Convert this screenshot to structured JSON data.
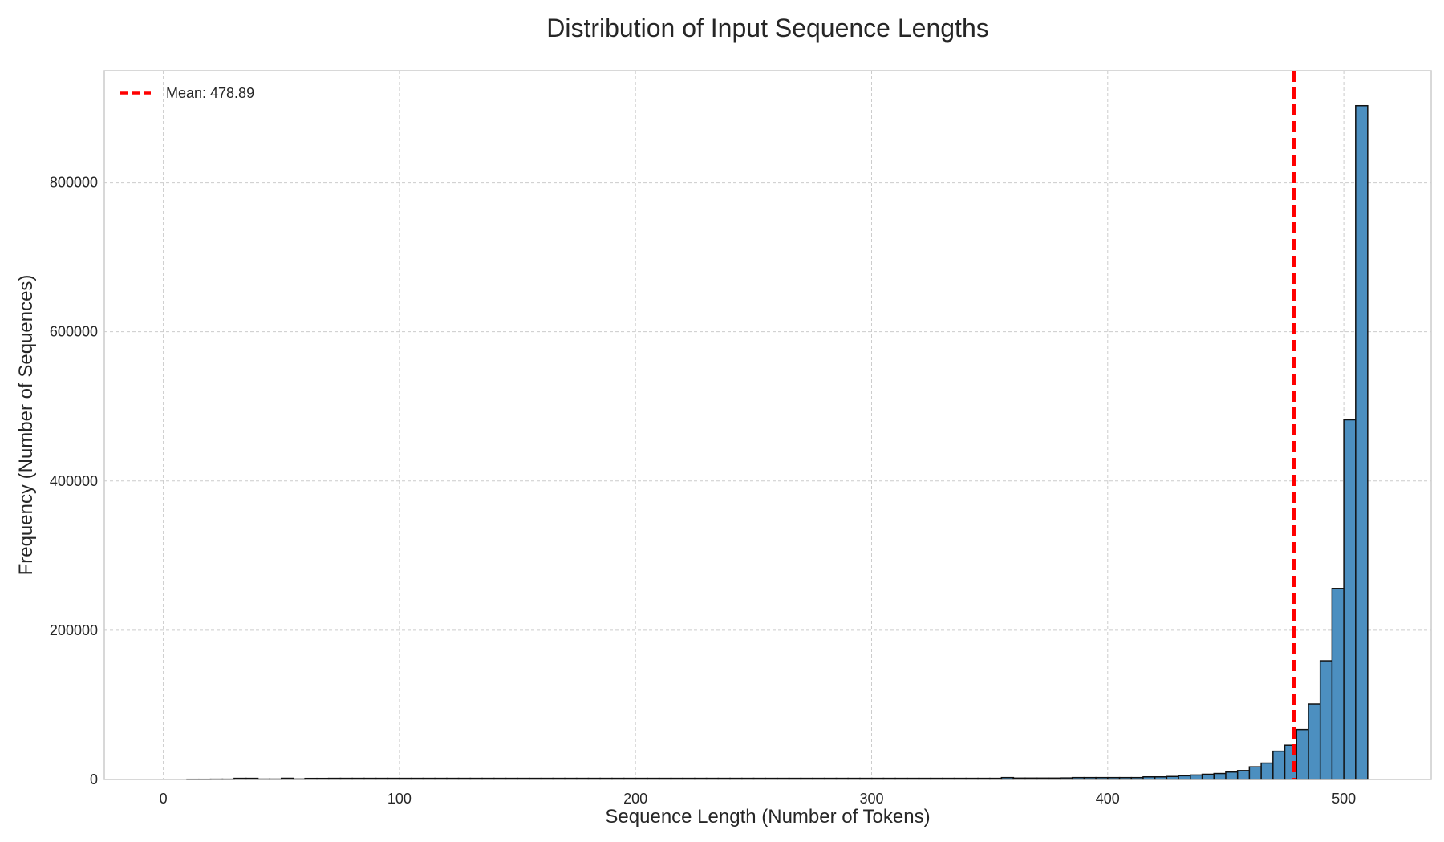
{
  "chart_data": {
    "type": "bar",
    "title": "Distribution of Input Sequence Lengths",
    "xlabel": "Sequence Length (Number of Tokens)",
    "ylabel": "Frequency (Number of Sequences)",
    "xlim": [
      -25,
      537
    ],
    "ylim": [
      0,
      950000
    ],
    "xticks": [
      0,
      100,
      200,
      300,
      400,
      500
    ],
    "yticks": [
      0,
      200000,
      400000,
      600000,
      800000
    ],
    "grid": true,
    "legend_position": "top-left",
    "colors": {
      "bar": "#4c8fc0",
      "bar_edge": "#111111",
      "mean_line": "#ff0000"
    },
    "mean": {
      "value": 478.89,
      "label": "Mean: 478.89"
    },
    "bin_width": 5.1,
    "bins": [
      {
        "x": 10,
        "y": 300
      },
      {
        "x": 15,
        "y": 300
      },
      {
        "x": 20,
        "y": 400
      },
      {
        "x": 25,
        "y": 400
      },
      {
        "x": 30,
        "y": 1500
      },
      {
        "x": 35,
        "y": 1500
      },
      {
        "x": 40,
        "y": 500
      },
      {
        "x": 45,
        "y": 500
      },
      {
        "x": 50,
        "y": 1600
      },
      {
        "x": 55,
        "y": 600
      },
      {
        "x": 60,
        "y": 1400
      },
      {
        "x": 65,
        "y": 1400
      },
      {
        "x": 70,
        "y": 1500
      },
      {
        "x": 75,
        "y": 1500
      },
      {
        "x": 80,
        "y": 1500
      },
      {
        "x": 85,
        "y": 1500
      },
      {
        "x": 90,
        "y": 1500
      },
      {
        "x": 95,
        "y": 1500
      },
      {
        "x": 100,
        "y": 1500
      },
      {
        "x": 105,
        "y": 1500
      },
      {
        "x": 110,
        "y": 1500
      },
      {
        "x": 115,
        "y": 1500
      },
      {
        "x": 120,
        "y": 1500
      },
      {
        "x": 125,
        "y": 1500
      },
      {
        "x": 130,
        "y": 1500
      },
      {
        "x": 135,
        "y": 1500
      },
      {
        "x": 140,
        "y": 1500
      },
      {
        "x": 145,
        "y": 1500
      },
      {
        "x": 150,
        "y": 1500
      },
      {
        "x": 155,
        "y": 1500
      },
      {
        "x": 160,
        "y": 1500
      },
      {
        "x": 165,
        "y": 1500
      },
      {
        "x": 170,
        "y": 1500
      },
      {
        "x": 175,
        "y": 1500
      },
      {
        "x": 180,
        "y": 1500
      },
      {
        "x": 185,
        "y": 1500
      },
      {
        "x": 190,
        "y": 1500
      },
      {
        "x": 195,
        "y": 1500
      },
      {
        "x": 200,
        "y": 1500
      },
      {
        "x": 205,
        "y": 1500
      },
      {
        "x": 210,
        "y": 1500
      },
      {
        "x": 215,
        "y": 1500
      },
      {
        "x": 220,
        "y": 1500
      },
      {
        "x": 225,
        "y": 1500
      },
      {
        "x": 230,
        "y": 1500
      },
      {
        "x": 235,
        "y": 1500
      },
      {
        "x": 240,
        "y": 1500
      },
      {
        "x": 245,
        "y": 1500
      },
      {
        "x": 250,
        "y": 1500
      },
      {
        "x": 255,
        "y": 1500
      },
      {
        "x": 260,
        "y": 1500
      },
      {
        "x": 265,
        "y": 1500
      },
      {
        "x": 270,
        "y": 1500
      },
      {
        "x": 275,
        "y": 1500
      },
      {
        "x": 280,
        "y": 1500
      },
      {
        "x": 285,
        "y": 1500
      },
      {
        "x": 290,
        "y": 1500
      },
      {
        "x": 295,
        "y": 1500
      },
      {
        "x": 300,
        "y": 1500
      },
      {
        "x": 305,
        "y": 1500
      },
      {
        "x": 310,
        "y": 1500
      },
      {
        "x": 315,
        "y": 1500
      },
      {
        "x": 320,
        "y": 1500
      },
      {
        "x": 325,
        "y": 1500
      },
      {
        "x": 330,
        "y": 1500
      },
      {
        "x": 335,
        "y": 1500
      },
      {
        "x": 340,
        "y": 1500
      },
      {
        "x": 345,
        "y": 1500
      },
      {
        "x": 350,
        "y": 1500
      },
      {
        "x": 355,
        "y": 2500
      },
      {
        "x": 360,
        "y": 1800
      },
      {
        "x": 365,
        "y": 1800
      },
      {
        "x": 370,
        "y": 1800
      },
      {
        "x": 375,
        "y": 1800
      },
      {
        "x": 380,
        "y": 2000
      },
      {
        "x": 385,
        "y": 2500
      },
      {
        "x": 390,
        "y": 2500
      },
      {
        "x": 395,
        "y": 2500
      },
      {
        "x": 400,
        "y": 2500
      },
      {
        "x": 405,
        "y": 2500
      },
      {
        "x": 410,
        "y": 2500
      },
      {
        "x": 415,
        "y": 3500
      },
      {
        "x": 420,
        "y": 3500
      },
      {
        "x": 425,
        "y": 4000
      },
      {
        "x": 430,
        "y": 5000
      },
      {
        "x": 435,
        "y": 6000
      },
      {
        "x": 440,
        "y": 7000
      },
      {
        "x": 445,
        "y": 8000
      },
      {
        "x": 450,
        "y": 10000
      },
      {
        "x": 455,
        "y": 12000
      },
      {
        "x": 460,
        "y": 17000
      },
      {
        "x": 465,
        "y": 22000
      },
      {
        "x": 470,
        "y": 38000
      },
      {
        "x": 475,
        "y": 46000
      },
      {
        "x": 480,
        "y": 67000
      },
      {
        "x": 485,
        "y": 101000
      },
      {
        "x": 490,
        "y": 159000
      },
      {
        "x": 495,
        "y": 256000
      },
      {
        "x": 500,
        "y": 482000
      },
      {
        "x": 505,
        "y": 903000
      }
    ]
  }
}
